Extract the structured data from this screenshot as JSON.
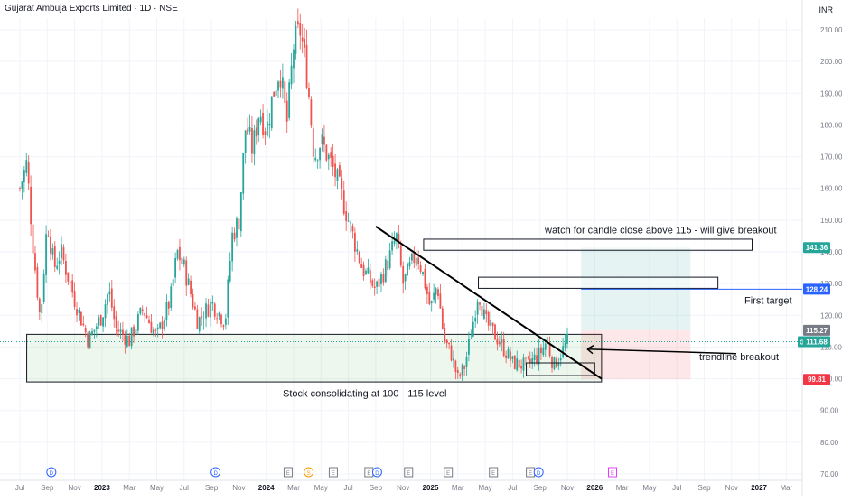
{
  "header": {
    "title": "Gujarat Ambuja Exports Limited · 1D · NSE",
    "currency": "INR"
  },
  "chart_data": {
    "type": "candlestick",
    "symbol": "GAEL",
    "interval": "1D",
    "exchange": "NSE",
    "ylim": [
      70,
      212
    ],
    "y_ticks": [
      70,
      80,
      90,
      100,
      110,
      120,
      130,
      140,
      150,
      160,
      170,
      180,
      190,
      200,
      210
    ],
    "x_ticks": [
      "Jul",
      "Sep",
      "Nov",
      "2023",
      "Mar",
      "May",
      "Jul",
      "Sep",
      "Nov",
      "2024",
      "Mar",
      "May",
      "Jul",
      "Sep",
      "Nov",
      "2025",
      "Mar",
      "May",
      "Jul",
      "Sep",
      "Nov",
      "2026",
      "Mar",
      "May",
      "Jul",
      "Sep",
      "Nov",
      "2027",
      "Mar"
    ],
    "x_range_months": [
      0,
      57
    ],
    "price_series": [
      {
        "m": 0,
        "p": 160
      },
      {
        "m": 0.5,
        "p": 168
      },
      {
        "m": 1,
        "p": 140
      },
      {
        "m": 1.5,
        "p": 118
      },
      {
        "m": 2,
        "p": 150
      },
      {
        "m": 2.5,
        "p": 135
      },
      {
        "m": 3,
        "p": 140
      },
      {
        "m": 4,
        "p": 125
      },
      {
        "m": 5,
        "p": 112
      },
      {
        "m": 6,
        "p": 120
      },
      {
        "m": 6.5,
        "p": 128
      },
      {
        "m": 7,
        "p": 116
      },
      {
        "m": 8,
        "p": 112
      },
      {
        "m": 9,
        "p": 122
      },
      {
        "m": 10,
        "p": 113
      },
      {
        "m": 11,
        "p": 125
      },
      {
        "m": 11.5,
        "p": 140
      },
      {
        "m": 12,
        "p": 135
      },
      {
        "m": 13,
        "p": 118
      },
      {
        "m": 14,
        "p": 124
      },
      {
        "m": 15,
        "p": 118
      },
      {
        "m": 15.5,
        "p": 145
      },
      {
        "m": 16,
        "p": 150
      },
      {
        "m": 16.5,
        "p": 180
      },
      {
        "m": 17,
        "p": 172
      },
      {
        "m": 17.5,
        "p": 185
      },
      {
        "m": 18,
        "p": 178
      },
      {
        "m": 18.5,
        "p": 190
      },
      {
        "m": 19,
        "p": 198
      },
      {
        "m": 19.5,
        "p": 180
      },
      {
        "m": 20,
        "p": 205
      },
      {
        "m": 20.5,
        "p": 210
      },
      {
        "m": 21,
        "p": 195
      },
      {
        "m": 21.5,
        "p": 170
      },
      {
        "m": 22,
        "p": 175
      },
      {
        "m": 23,
        "p": 165
      },
      {
        "m": 23.5,
        "p": 158
      },
      {
        "m": 24,
        "p": 150
      },
      {
        "m": 25,
        "p": 135
      },
      {
        "m": 26,
        "p": 128
      },
      {
        "m": 27,
        "p": 138
      },
      {
        "m": 27.5,
        "p": 145
      },
      {
        "m": 28,
        "p": 130
      },
      {
        "m": 29,
        "p": 140
      },
      {
        "m": 29.5,
        "p": 132
      },
      {
        "m": 30,
        "p": 122
      },
      {
        "m": 30.5,
        "p": 130
      },
      {
        "m": 31,
        "p": 112
      },
      {
        "m": 31.5,
        "p": 108
      },
      {
        "m": 32,
        "p": 100
      },
      {
        "m": 32.5,
        "p": 104
      },
      {
        "m": 33,
        "p": 115
      },
      {
        "m": 33.5,
        "p": 128
      },
      {
        "m": 34,
        "p": 118
      },
      {
        "m": 35,
        "p": 112
      },
      {
        "m": 36,
        "p": 105
      },
      {
        "m": 37,
        "p": 104
      },
      {
        "m": 38,
        "p": 108
      },
      {
        "m": 38.5,
        "p": 112
      },
      {
        "m": 39,
        "p": 104
      },
      {
        "m": 40,
        "p": 111.68
      }
    ],
    "last_price": 111.68,
    "price_labels": [
      {
        "label": "141.36",
        "value": 141.36,
        "color": "#26a69a"
      },
      {
        "label": "128.24",
        "value": 128.24,
        "color": "#2962ff"
      },
      {
        "label": "115.27",
        "value": 115.27,
        "color": "#787b86"
      },
      {
        "label": "111.68",
        "value": 111.68,
        "color": "#26a69a",
        "prefix": "GAEL"
      },
      {
        "label": "99.81",
        "value": 99.81,
        "color": "#f23645"
      }
    ],
    "trendline": {
      "from": {
        "m": 26,
        "p": 148
      },
      "to": {
        "m": 42.5,
        "p": 100
      }
    },
    "consolidation_box": {
      "m0": 0.5,
      "m1": 42.5,
      "p0": 99,
      "p1": 114
    },
    "small_box": {
      "m0": 37,
      "m1": 42,
      "p0": 101,
      "p1": 105
    },
    "zone_boxes": [
      {
        "m0": 29.5,
        "m1": 53.5,
        "p0": 140.5,
        "p1": 144
      },
      {
        "m0": 33.5,
        "m1": 51,
        "p0": 128.5,
        "p1": 132
      }
    ],
    "position": {
      "m0": 41,
      "m1": 49,
      "entry": 115.27,
      "target": 141.36,
      "stop": 99.81
    },
    "first_target_line": {
      "m0": 41,
      "m1": 57,
      "p": 128.24
    },
    "annotations": {
      "watch": "watch for candle close above 115 - will give breakout",
      "first_target": "First target",
      "trendline_breakout": "trendline breakout",
      "consolidating": "Stock consolidating at 100 - 115 level"
    },
    "events": [
      {
        "m": 2.3,
        "label": "D",
        "kind": "div"
      },
      {
        "m": 14.3,
        "label": "D",
        "kind": "div"
      },
      {
        "m": 19.6,
        "label": "E",
        "kind": "earn"
      },
      {
        "m": 21.1,
        "label": "S",
        "kind": "split"
      },
      {
        "m": 22.9,
        "label": "E",
        "kind": "earn"
      },
      {
        "m": 25.5,
        "label": "E",
        "kind": "earn"
      },
      {
        "m": 26.1,
        "label": "D",
        "kind": "div"
      },
      {
        "m": 28.4,
        "label": "E",
        "kind": "earn"
      },
      {
        "m": 31.3,
        "label": "E",
        "kind": "earn"
      },
      {
        "m": 34.6,
        "label": "E",
        "kind": "earn"
      },
      {
        "m": 37.3,
        "label": "E",
        "kind": "earn"
      },
      {
        "m": 37.9,
        "label": "D",
        "kind": "div"
      },
      {
        "m": 43.3,
        "label": "E",
        "kind": "future"
      }
    ],
    "colors": {
      "up": "#26a69a",
      "down": "#ef5350",
      "grid": "#f0f3fa",
      "axis": "#787b86"
    }
  }
}
